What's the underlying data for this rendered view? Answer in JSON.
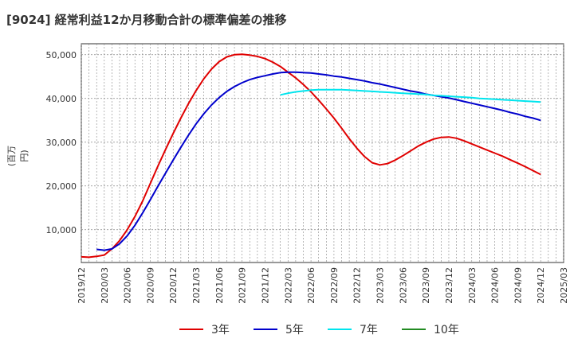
{
  "chart_data": {
    "type": "line",
    "title": "[9024]  経常利益12か月移動合計の標準偏差の推移",
    "ylabel": "(百万円)",
    "xlabel": "",
    "ylim": [
      2500,
      52500
    ],
    "yticks": [
      10000,
      20000,
      30000,
      40000,
      50000
    ],
    "ytick_labels": [
      "10,000",
      "20,000",
      "30,000",
      "40,000",
      "50,000"
    ],
    "xticks": [
      "2019/12",
      "2020/03",
      "2020/06",
      "2020/09",
      "2020/12",
      "2021/03",
      "2021/06",
      "2021/09",
      "2021/12",
      "2022/03",
      "2022/06",
      "2022/09",
      "2022/12",
      "2023/03",
      "2023/06",
      "2023/09",
      "2023/12",
      "2024/03",
      "2024/06",
      "2024/09",
      "2024/12",
      "2025/03"
    ],
    "grid": true,
    "legend_position": "bottom",
    "series": [
      {
        "name": "3年",
        "color": "#e00000",
        "points": [
          [
            "2019/12",
            3800
          ],
          [
            "2020/01",
            3700
          ],
          [
            "2020/02",
            3900
          ],
          [
            "2020/03",
            4200
          ],
          [
            "2020/04",
            5600
          ],
          [
            "2020/05",
            7500
          ],
          [
            "2020/06",
            10000
          ],
          [
            "2020/07",
            13000
          ],
          [
            "2020/08",
            16500
          ],
          [
            "2020/09",
            20500
          ],
          [
            "2020/10",
            24500
          ],
          [
            "2020/11",
            28300
          ],
          [
            "2020/12",
            32000
          ],
          [
            "2021/01",
            35500
          ],
          [
            "2021/02",
            38800
          ],
          [
            "2021/03",
            41800
          ],
          [
            "2021/04",
            44500
          ],
          [
            "2021/05",
            46700
          ],
          [
            "2021/06",
            48400
          ],
          [
            "2021/07",
            49500
          ],
          [
            "2021/08",
            50000
          ],
          [
            "2021/09",
            50100
          ],
          [
            "2021/10",
            49900
          ],
          [
            "2021/11",
            49600
          ],
          [
            "2021/12",
            49100
          ],
          [
            "2022/01",
            48300
          ],
          [
            "2022/02",
            47300
          ],
          [
            "2022/03",
            46000
          ],
          [
            "2022/04",
            44700
          ],
          [
            "2022/05",
            43200
          ],
          [
            "2022/06",
            41500
          ],
          [
            "2022/07",
            39600
          ],
          [
            "2022/08",
            37600
          ],
          [
            "2022/09",
            35500
          ],
          [
            "2022/10",
            33200
          ],
          [
            "2022/11",
            30800
          ],
          [
            "2022/12",
            28600
          ],
          [
            "2023/01",
            26700
          ],
          [
            "2023/02",
            25300
          ],
          [
            "2023/03",
            24800
          ],
          [
            "2023/04",
            25100
          ],
          [
            "2023/05",
            25900
          ],
          [
            "2023/06",
            26900
          ],
          [
            "2023/07",
            28000
          ],
          [
            "2023/08",
            29100
          ],
          [
            "2023/09",
            30000
          ],
          [
            "2023/10",
            30700
          ],
          [
            "2023/11",
            31100
          ],
          [
            "2023/12",
            31200
          ],
          [
            "2024/01",
            30900
          ],
          [
            "2024/02",
            30300
          ],
          [
            "2024/03",
            29600
          ],
          [
            "2024/04",
            28900
          ],
          [
            "2024/05",
            28200
          ],
          [
            "2024/06",
            27500
          ],
          [
            "2024/07",
            26800
          ],
          [
            "2024/08",
            26000
          ],
          [
            "2024/09",
            25200
          ],
          [
            "2024/10",
            24400
          ],
          [
            "2024/11",
            23500
          ],
          [
            "2024/12",
            22600
          ]
        ]
      },
      {
        "name": "5年",
        "color": "#0000cc",
        "points": [
          [
            "2020/02",
            5500
          ],
          [
            "2020/03",
            5300
          ],
          [
            "2020/04",
            5600
          ],
          [
            "2020/05",
            6800
          ],
          [
            "2020/06",
            8600
          ],
          [
            "2020/07",
            11000
          ],
          [
            "2020/08",
            13800
          ],
          [
            "2020/09",
            16800
          ],
          [
            "2020/10",
            19900
          ],
          [
            "2020/11",
            22900
          ],
          [
            "2020/12",
            25900
          ],
          [
            "2021/01",
            28800
          ],
          [
            "2021/02",
            31600
          ],
          [
            "2021/03",
            34200
          ],
          [
            "2021/04",
            36500
          ],
          [
            "2021/05",
            38500
          ],
          [
            "2021/06",
            40200
          ],
          [
            "2021/07",
            41600
          ],
          [
            "2021/08",
            42700
          ],
          [
            "2021/09",
            43600
          ],
          [
            "2021/10",
            44300
          ],
          [
            "2021/11",
            44800
          ],
          [
            "2021/12",
            45200
          ],
          [
            "2022/01",
            45600
          ],
          [
            "2022/02",
            45900
          ],
          [
            "2022/03",
            46000
          ],
          [
            "2022/04",
            46000
          ],
          [
            "2022/05",
            45900
          ],
          [
            "2022/06",
            45800
          ],
          [
            "2022/07",
            45600
          ],
          [
            "2022/08",
            45400
          ],
          [
            "2022/09",
            45100
          ],
          [
            "2022/10",
            44900
          ],
          [
            "2022/11",
            44600
          ],
          [
            "2022/12",
            44300
          ],
          [
            "2023/01",
            44000
          ],
          [
            "2023/02",
            43600
          ],
          [
            "2023/03",
            43300
          ],
          [
            "2023/04",
            42900
          ],
          [
            "2023/05",
            42500
          ],
          [
            "2023/06",
            42100
          ],
          [
            "2023/07",
            41700
          ],
          [
            "2023/08",
            41400
          ],
          [
            "2023/09",
            41000
          ],
          [
            "2023/10",
            40700
          ],
          [
            "2023/11",
            40400
          ],
          [
            "2023/12",
            40100
          ],
          [
            "2024/01",
            39700
          ],
          [
            "2024/02",
            39300
          ],
          [
            "2024/03",
            38900
          ],
          [
            "2024/04",
            38500
          ],
          [
            "2024/05",
            38100
          ],
          [
            "2024/06",
            37700
          ],
          [
            "2024/07",
            37300
          ],
          [
            "2024/08",
            36800
          ],
          [
            "2024/09",
            36400
          ],
          [
            "2024/10",
            35900
          ],
          [
            "2024/11",
            35500
          ],
          [
            "2024/12",
            35000
          ]
        ]
      },
      {
        "name": "7年",
        "color": "#00e5ee",
        "points": [
          [
            "2022/02",
            40800
          ],
          [
            "2022/03",
            41200
          ],
          [
            "2022/04",
            41500
          ],
          [
            "2022/05",
            41700
          ],
          [
            "2022/06",
            41900
          ],
          [
            "2022/07",
            42000
          ],
          [
            "2022/08",
            42000
          ],
          [
            "2022/09",
            42000
          ],
          [
            "2022/10",
            42000
          ],
          [
            "2022/11",
            41900
          ],
          [
            "2022/12",
            41800
          ],
          [
            "2023/01",
            41700
          ],
          [
            "2023/02",
            41600
          ],
          [
            "2023/03",
            41500
          ],
          [
            "2023/04",
            41400
          ],
          [
            "2023/05",
            41300
          ],
          [
            "2023/06",
            41200
          ],
          [
            "2023/07",
            41100
          ],
          [
            "2023/08",
            41000
          ],
          [
            "2023/09",
            40900
          ],
          [
            "2023/10",
            40700
          ],
          [
            "2023/11",
            40600
          ],
          [
            "2023/12",
            40500
          ],
          [
            "2024/01",
            40400
          ],
          [
            "2024/02",
            40300
          ],
          [
            "2024/03",
            40200
          ],
          [
            "2024/04",
            40000
          ],
          [
            "2024/05",
            39900
          ],
          [
            "2024/06",
            39800
          ],
          [
            "2024/07",
            39700
          ],
          [
            "2024/08",
            39600
          ],
          [
            "2024/09",
            39500
          ],
          [
            "2024/10",
            39400
          ],
          [
            "2024/11",
            39300
          ],
          [
            "2024/12",
            39200
          ]
        ]
      },
      {
        "name": "10年",
        "color": "#228b22",
        "points": []
      }
    ]
  }
}
